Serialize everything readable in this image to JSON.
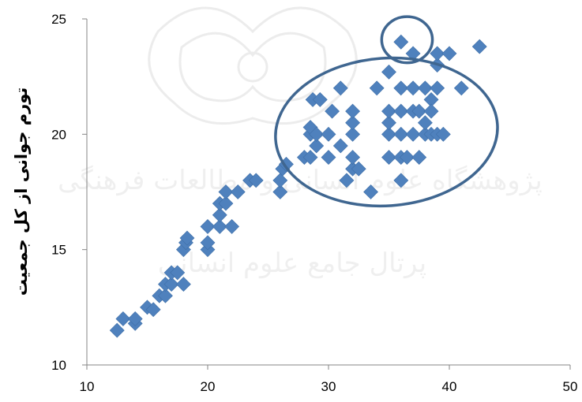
{
  "chart_data": {
    "type": "scatter",
    "ylabel": "تورم جوانی از کل جمعیت",
    "xlabel": "",
    "title": "",
    "xlim": [
      10,
      50
    ],
    "ylim": [
      10,
      25
    ],
    "xticks": [
      "10",
      "20",
      "30",
      "40",
      "50"
    ],
    "yticks": [
      "10",
      "15",
      "20",
      "25"
    ],
    "grid": false,
    "legend": "none",
    "marker": "diamond",
    "marker_color": "#4F81BD",
    "annotation_color": "#3F6690",
    "watermark_text": [
      "پژوهشگاه علوم انسانی و مطالعات فرهنگی",
      "پرتال جامع علوم انسانی"
    ],
    "annotations": [
      {
        "shape": "ellipse",
        "cx": 36.5,
        "cy": 24.1,
        "rx": 2.1,
        "ry": 1.0
      },
      {
        "shape": "ellipse",
        "cx": 34.8,
        "cy": 20.1,
        "rx": 9.2,
        "ry": 3.2
      }
    ],
    "points": [
      [
        12.5,
        11.5
      ],
      [
        13,
        12.0
      ],
      [
        14,
        11.8
      ],
      [
        14,
        12.0
      ],
      [
        15,
        12.5
      ],
      [
        15.5,
        12.4
      ],
      [
        16,
        13.0
      ],
      [
        16.5,
        13.0
      ],
      [
        16.5,
        13.5
      ],
      [
        17,
        13.5
      ],
      [
        17,
        14.0
      ],
      [
        17.5,
        14.0
      ],
      [
        18,
        13.5
      ],
      [
        18,
        15.0
      ],
      [
        18.2,
        15.3
      ],
      [
        18.3,
        15.5
      ],
      [
        20,
        15.0
      ],
      [
        20,
        15.3
      ],
      [
        20,
        16.0
      ],
      [
        21,
        16.0
      ],
      [
        21,
        16.5
      ],
      [
        21,
        17.0
      ],
      [
        21.5,
        17.0
      ],
      [
        21.5,
        17.5
      ],
      [
        22,
        16.0
      ],
      [
        22.5,
        17.5
      ],
      [
        23.5,
        18.0
      ],
      [
        24,
        18.0
      ],
      [
        26,
        17.5
      ],
      [
        26,
        18.0
      ],
      [
        26.2,
        18.5
      ],
      [
        26.5,
        18.7
      ],
      [
        28,
        19.0
      ],
      [
        28.5,
        19.0
      ],
      [
        28.5,
        20.0
      ],
      [
        28.5,
        20.3
      ],
      [
        28.7,
        21.5
      ],
      [
        29,
        19.5
      ],
      [
        29,
        20.0
      ],
      [
        29.3,
        21.5
      ],
      [
        30,
        19.0
      ],
      [
        30,
        20.0
      ],
      [
        30.3,
        21.0
      ],
      [
        31,
        19.5
      ],
      [
        31,
        22.0
      ],
      [
        31.5,
        18.0
      ],
      [
        32,
        18.5
      ],
      [
        32,
        19.0
      ],
      [
        32,
        20.0
      ],
      [
        32,
        20.5
      ],
      [
        32,
        21.0
      ],
      [
        32.5,
        18.5
      ],
      [
        33.5,
        17.5
      ],
      [
        34,
        22.0
      ],
      [
        35,
        19.0
      ],
      [
        35,
        20.0
      ],
      [
        35,
        20.5
      ],
      [
        35,
        21.0
      ],
      [
        35,
        22.7
      ],
      [
        36,
        19.0
      ],
      [
        36,
        20.0
      ],
      [
        36,
        21.0
      ],
      [
        36,
        22.0
      ],
      [
        36,
        18.0
      ],
      [
        36,
        24.0
      ],
      [
        36.5,
        19.0
      ],
      [
        37,
        23.5
      ],
      [
        37,
        22.0
      ],
      [
        37,
        21.0
      ],
      [
        37,
        20.0
      ],
      [
        37.5,
        19.0
      ],
      [
        37.5,
        21.0
      ],
      [
        38,
        20.0
      ],
      [
        38,
        20.5
      ],
      [
        38,
        22.0
      ],
      [
        38.5,
        21.5
      ],
      [
        38.5,
        20.0
      ],
      [
        38.5,
        21.0
      ],
      [
        39,
        20.0
      ],
      [
        39,
        22.0
      ],
      [
        39,
        23.0
      ],
      [
        39,
        23.5
      ],
      [
        39.5,
        20.0
      ],
      [
        40,
        23.5
      ],
      [
        41,
        22.0
      ],
      [
        42.5,
        23.8
      ]
    ]
  }
}
